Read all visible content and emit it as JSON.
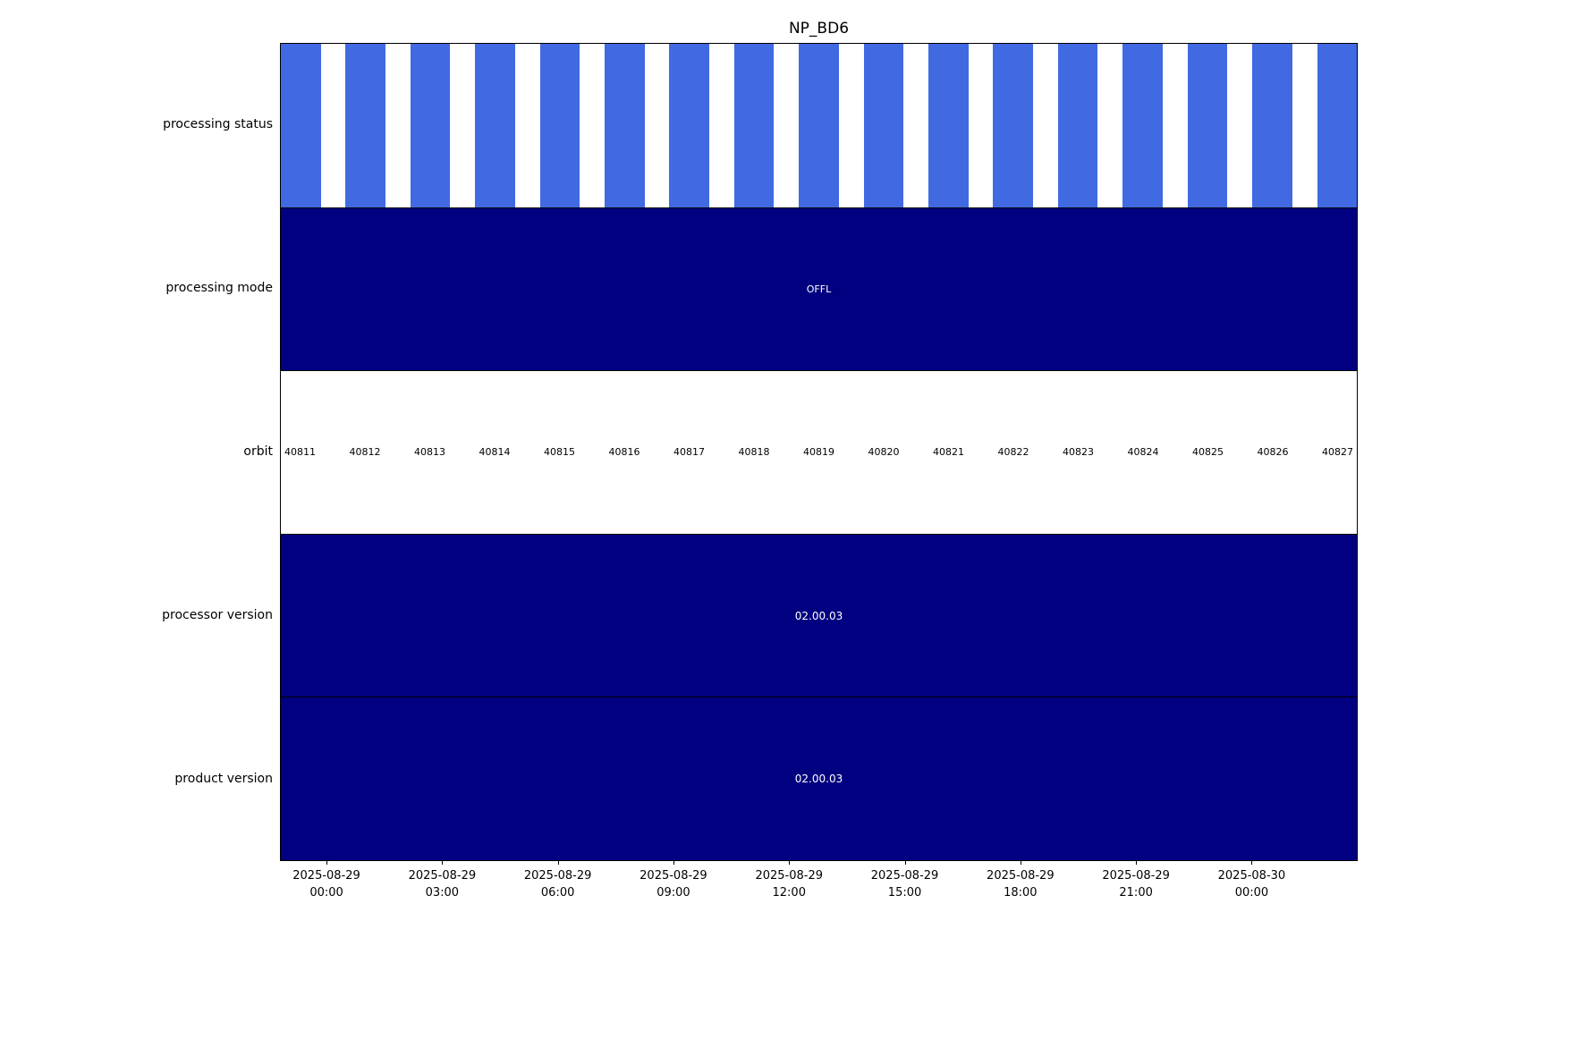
{
  "title": "NP_BD6",
  "colors": {
    "stripe_blue": "#4169e1",
    "navy": "#000080",
    "background": "#ffffff",
    "text": "#000000",
    "band_text": "#ffffff"
  },
  "rows": {
    "processing_status": {
      "label": "processing status"
    },
    "processing_mode": {
      "label": "processing mode",
      "value": "OFFL"
    },
    "orbit": {
      "label": "orbit",
      "values": [
        "40811",
        "40812",
        "40813",
        "40814",
        "40815",
        "40816",
        "40817",
        "40818",
        "40819",
        "40820",
        "40821",
        "40822",
        "40823",
        "40824",
        "40825",
        "40826",
        "40827"
      ]
    },
    "processor_version": {
      "label": "processor version",
      "value": "02.00.03"
    },
    "product_version": {
      "label": "product version",
      "value": "02.00.03"
    }
  },
  "x_axis": {
    "tick_labels": [
      "2025-08-29 00:00",
      "2025-08-29 03:00",
      "2025-08-29 06:00",
      "2025-08-29 09:00",
      "2025-08-29 12:00",
      "2025-08-29 15:00",
      "2025-08-29 18:00",
      "2025-08-29 21:00",
      "2025-08-30 00:00"
    ]
  },
  "chart_data": {
    "type": "timeline",
    "title": "NP_BD6",
    "rows": [
      {
        "label": "processing status",
        "kind": "bars",
        "bar_count": 17,
        "bar_color": "#4169e1",
        "note": "one bar per orbit, evenly spaced with white gaps"
      },
      {
        "label": "processing mode",
        "kind": "span",
        "value": "OFFL",
        "color": "#000080"
      },
      {
        "label": "orbit",
        "kind": "labels",
        "values": [
          40811,
          40812,
          40813,
          40814,
          40815,
          40816,
          40817,
          40818,
          40819,
          40820,
          40821,
          40822,
          40823,
          40824,
          40825,
          40826,
          40827
        ]
      },
      {
        "label": "processor version",
        "kind": "span",
        "value": "02.00.03",
        "color": "#000080"
      },
      {
        "label": "product version",
        "kind": "span",
        "value": "02.00.03",
        "color": "#000080"
      }
    ],
    "x_ticks": [
      "2025-08-29 00:00",
      "2025-08-29 03:00",
      "2025-08-29 06:00",
      "2025-08-29 09:00",
      "2025-08-29 12:00",
      "2025-08-29 15:00",
      "2025-08-29 18:00",
      "2025-08-29 21:00",
      "2025-08-30 00:00"
    ],
    "legend": false,
    "grid": false
  }
}
